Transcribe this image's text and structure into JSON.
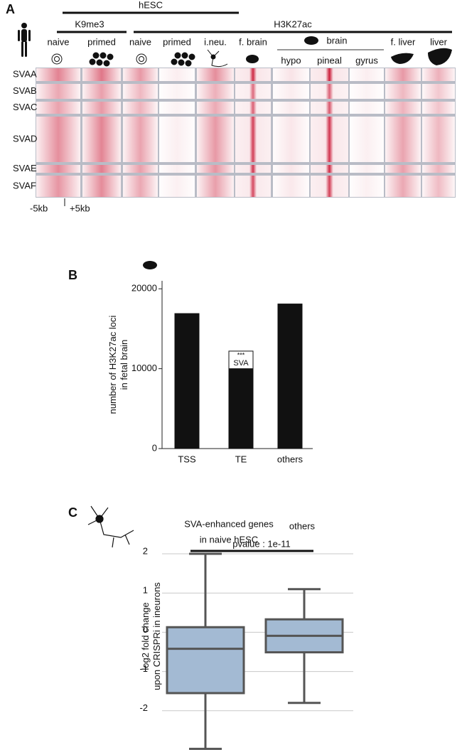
{
  "panel_a": {
    "panel_label": "A",
    "cell_type": "hESC",
    "mark_k9": "K9me3",
    "mark_h3": "H3K27ac",
    "brain_group": "brain",
    "columns": [
      "naive",
      "primed",
      "naive",
      "primed",
      "i.neu.",
      "f. brain",
      "hypo",
      "pineal",
      "gyrus",
      "f. liver",
      "liver"
    ],
    "rows": [
      "SVAA",
      "SVAB",
      "SVAC",
      "SVAD",
      "SVAE",
      "SVAF"
    ],
    "axis": [
      "-5kb",
      "+5kb"
    ]
  },
  "chart_data": [
    {
      "type": "bar",
      "panel_label": "B",
      "y_label": [
        "number of H3K27ac loci",
        "in fetal brain"
      ],
      "categories": [
        "TSS",
        "TE",
        "others"
      ],
      "series": [
        {
          "color": "#111111",
          "values": [
            16900,
            10000,
            18100
          ]
        },
        {
          "name": "SVA",
          "color": "#ffffff",
          "values": [
            null,
            2200,
            null
          ]
        }
      ],
      "annotation": "***",
      "ylim": [
        0,
        21000
      ],
      "yticks": [
        0,
        10000,
        20000
      ]
    },
    {
      "type": "box",
      "panel_label": "C",
      "y_label": [
        "log2 fold change",
        "upon CRISPRi in ineurons"
      ],
      "categories": [
        [
          "SVA-enhanced genes",
          "in naive hESC"
        ],
        [
          "others"
        ]
      ],
      "boxes": [
        {
          "whisker_low": -2.97,
          "q1": -1.55,
          "median": -0.42,
          "q3": 0.13,
          "whisker_high": 2.0
        },
        {
          "whisker_low": -1.8,
          "q1": -0.51,
          "median": -0.09,
          "q3": 0.33,
          "whisker_high": 1.1
        }
      ],
      "color": "#a3bad3",
      "annotation": "pvalue : 1e-11",
      "ylim": [
        -3,
        2.2
      ],
      "yticks": [
        -2,
        -1,
        0,
        1,
        2
      ],
      "grid": true
    }
  ]
}
